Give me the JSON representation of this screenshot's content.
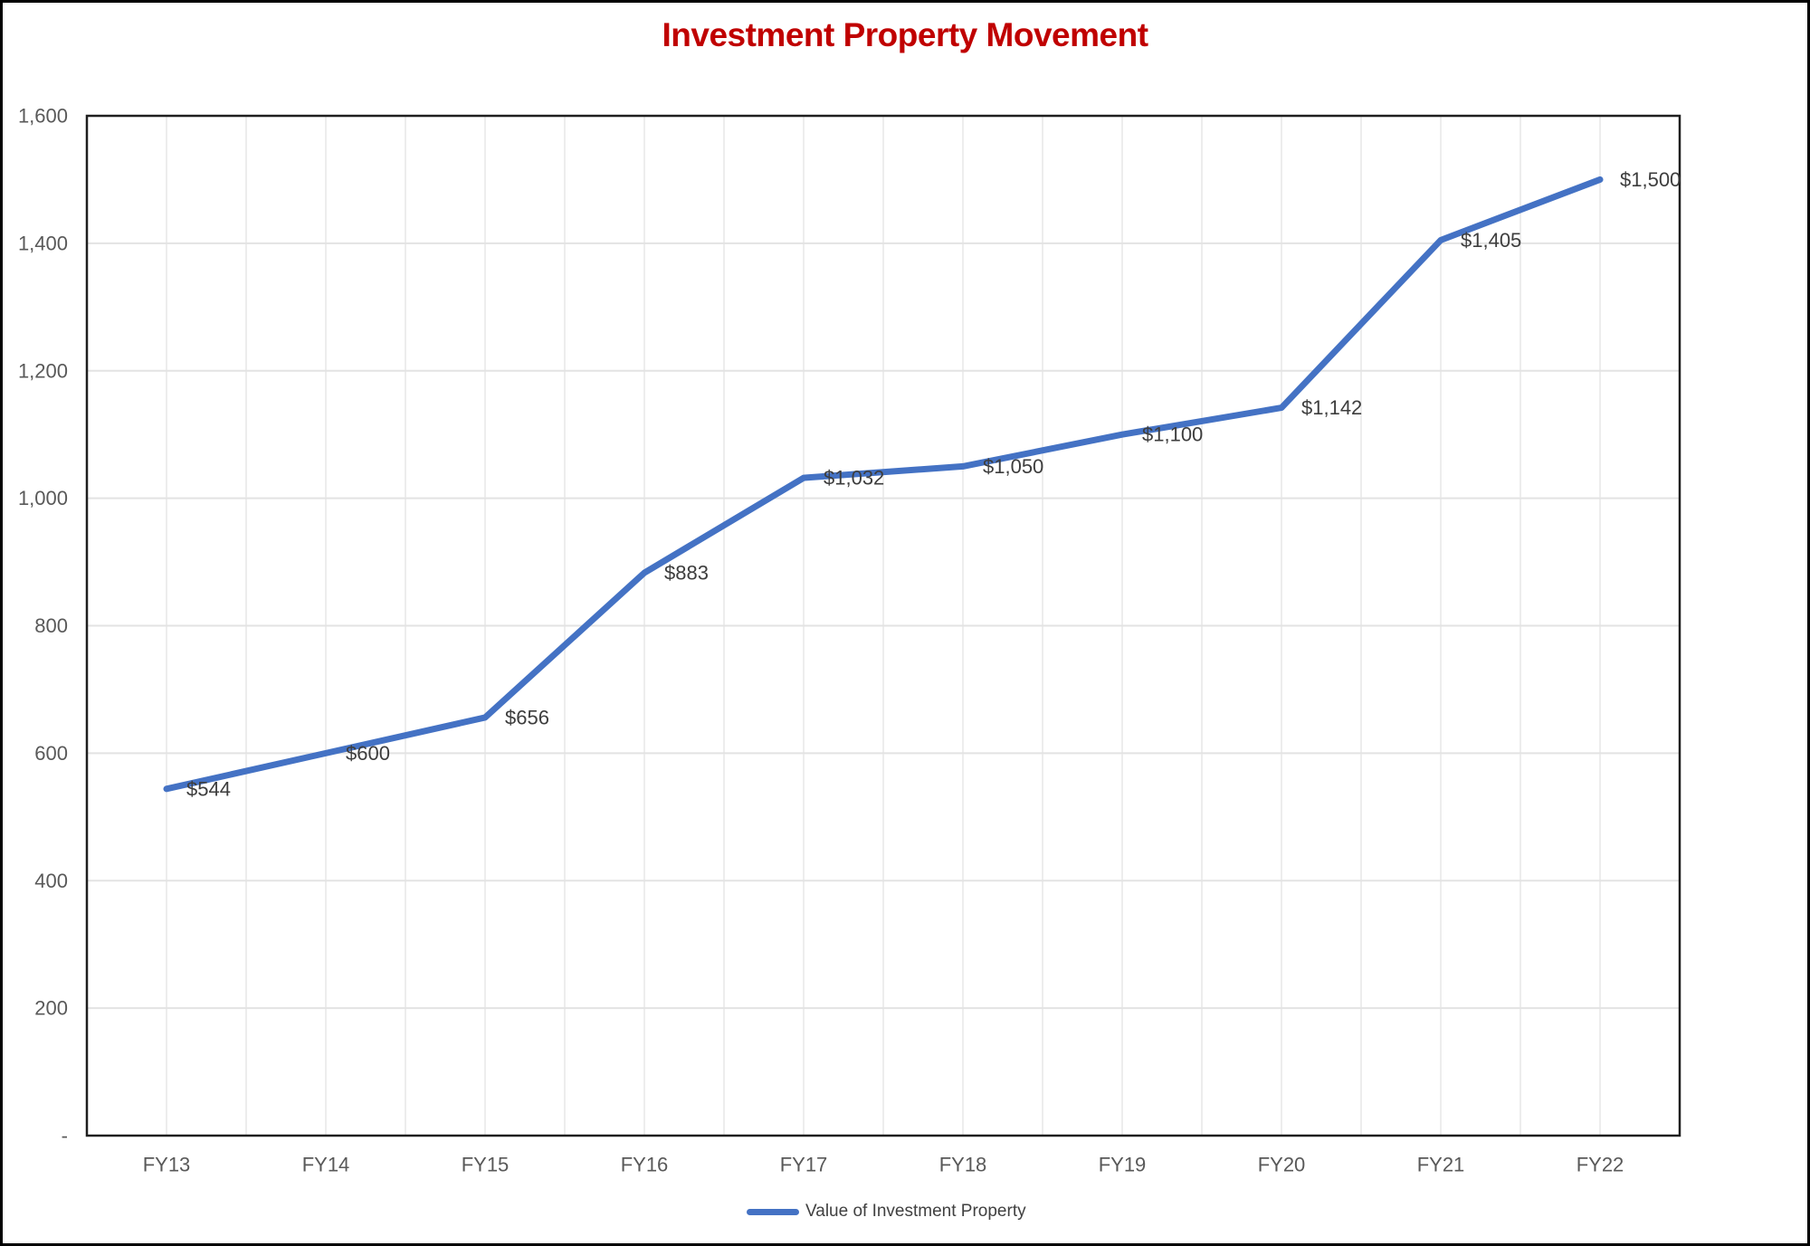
{
  "chart_data": {
    "type": "line",
    "title": "Investment Property Movement",
    "categories": [
      "FY13",
      "FY14",
      "FY15",
      "FY16",
      "FY17",
      "FY18",
      "FY19",
      "FY20",
      "FY21",
      "FY22"
    ],
    "series": [
      {
        "name": "Value of Investment Property",
        "values": [
          544,
          600,
          656,
          883,
          1032,
          1050,
          1100,
          1142,
          1405,
          1500
        ],
        "labels": [
          "$544",
          "$600",
          "$656",
          "$883",
          "$1,032",
          "$1,050",
          "$1,100",
          "$1,142",
          "$1,405",
          "$1,500"
        ],
        "color": "#4472C4"
      }
    ],
    "xlabel": "",
    "ylabel": "",
    "ylim": [
      0,
      1600
    ],
    "ytick_interval": 200,
    "ytick_labels": [
      "-",
      "200",
      "400",
      "600",
      "800",
      "1,000",
      "1,200",
      "1,400",
      "1,600"
    ],
    "grid": true,
    "legend_position": "bottom",
    "data_label_position": "right"
  },
  "colors": {
    "title": "#C00000",
    "series_line": "#4472C4",
    "axis_text": "#595959",
    "data_label_text": "#3d3d3d",
    "gridline_horizontal": "#e3e3e3",
    "gridline_vertical": "#ededed",
    "plot_border": "#1f1f1f",
    "outer_border": "#000000",
    "background": "#ffffff"
  }
}
